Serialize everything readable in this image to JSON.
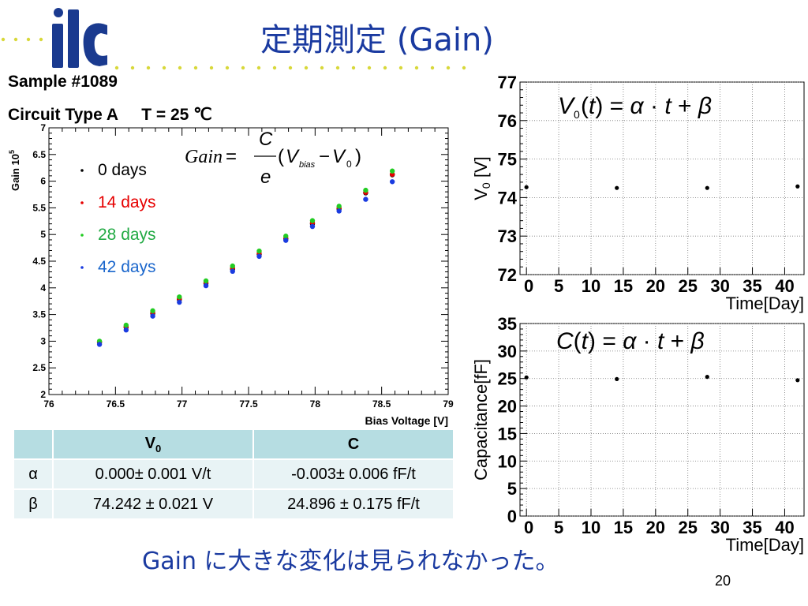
{
  "slide": {
    "title": "定期測定 (Gain)",
    "sample": "Sample #1089",
    "circuit": "Circuit Type A",
    "temperature": "T = 25 ℃",
    "caption": "Gain に大きな変化は見られなかった。",
    "page_number": "20",
    "title_color": "#1a3aa0"
  },
  "formulas": {
    "gain": "Gain = C/e (V_bias − V_0)",
    "v0": "V0(t) = α · t + β",
    "c": "C(t) = α · t + β"
  },
  "table": {
    "headers": [
      "",
      "V0",
      "C"
    ],
    "rows": [
      [
        "α",
        "0.000± 0.001 V/t",
        "-0.003± 0.006 fF/t"
      ],
      [
        "β",
        "74.242 ± 0.021 V",
        "24.896 ± 0.175 fF/t"
      ]
    ]
  },
  "chart_data": [
    {
      "type": "scatter",
      "xlabel": "Bias Voltage [V]",
      "ylabel": "Gain 10^5",
      "xlim": [
        76,
        79
      ],
      "ylim": [
        2,
        7
      ],
      "xticks": [
        "76",
        "76.5",
        "77",
        "77.5",
        "78",
        "78.5",
        "79"
      ],
      "yticks": [
        "2",
        "2.5",
        "3",
        "3.5",
        "4",
        "4.5",
        "5",
        "5.5",
        "6",
        "6.5",
        "7"
      ],
      "legend_position": "top-left",
      "series": [
        {
          "name": "0 days",
          "color": "#000000",
          "x": [
            76.38,
            76.58,
            76.78,
            76.98,
            77.18,
            77.38,
            77.58,
            77.78,
            77.98,
            78.18,
            78.38,
            78.58
          ],
          "y": [
            2.98,
            3.26,
            3.52,
            3.78,
            4.08,
            4.35,
            4.63,
            4.92,
            5.2,
            5.48,
            5.78,
            6.12
          ]
        },
        {
          "name": "14 days",
          "color": "#e60000",
          "x": [
            76.38,
            76.58,
            76.78,
            76.98,
            77.18,
            77.38,
            77.58,
            77.78,
            77.98,
            78.18,
            78.38,
            78.58
          ],
          "y": [
            2.99,
            3.27,
            3.54,
            3.8,
            4.1,
            4.37,
            4.65,
            4.93,
            5.22,
            5.5,
            5.79,
            6.13
          ]
        },
        {
          "name": "28 days",
          "color": "#22cc22",
          "x": [
            76.38,
            76.58,
            76.78,
            76.98,
            77.18,
            77.38,
            77.58,
            77.78,
            77.98,
            78.18,
            78.38,
            78.58
          ],
          "y": [
            3.0,
            3.3,
            3.57,
            3.83,
            4.13,
            4.41,
            4.69,
            4.97,
            5.26,
            5.53,
            5.83,
            6.19
          ]
        },
        {
          "name": "42 days",
          "color": "#1a3be0",
          "x": [
            76.38,
            76.58,
            76.78,
            76.98,
            77.18,
            77.38,
            77.58,
            77.78,
            77.98,
            78.18,
            78.38,
            78.58
          ],
          "y": [
            2.94,
            3.21,
            3.47,
            3.73,
            4.04,
            4.31,
            4.59,
            4.89,
            5.15,
            5.44,
            5.66,
            5.99
          ]
        }
      ],
      "legend_text_colors": [
        "#000000",
        "#e60000",
        "#22aa44",
        "#1a66cc"
      ]
    },
    {
      "type": "scatter",
      "xlabel": "Time[Day]",
      "ylabel": "V0 [V]",
      "xlim": [
        -1,
        43
      ],
      "ylim": [
        72,
        77
      ],
      "xticks": [
        "0",
        "5",
        "10",
        "15",
        "20",
        "25",
        "30",
        "35",
        "40"
      ],
      "yticks": [
        "72",
        "73",
        "74",
        "75",
        "76",
        "77"
      ],
      "grid": true,
      "series": [
        {
          "x": [
            0,
            14,
            28,
            42
          ],
          "y": [
            74.27,
            74.25,
            74.25,
            74.29
          ]
        }
      ]
    },
    {
      "type": "scatter",
      "xlabel": "Time[Day]",
      "ylabel": "Capacitance[fF]",
      "xlim": [
        -1,
        43
      ],
      "ylim": [
        0,
        35
      ],
      "xticks": [
        "0",
        "5",
        "10",
        "15",
        "20",
        "25",
        "30",
        "35",
        "40"
      ],
      "yticks": [
        "0",
        "5",
        "10",
        "15",
        "20",
        "25",
        "30",
        "35"
      ],
      "grid": true,
      "series": [
        {
          "x": [
            0,
            14,
            28,
            42
          ],
          "y": [
            25.2,
            24.9,
            25.3,
            24.7
          ]
        }
      ]
    }
  ]
}
